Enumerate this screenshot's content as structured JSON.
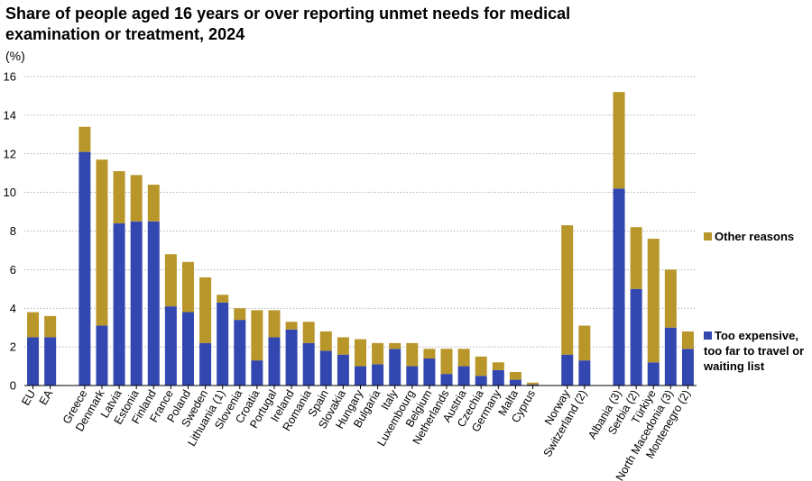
{
  "chart_data": {
    "type": "bar",
    "stacked": true,
    "title": "Share of people aged 16 years or over reporting unmet needs for medical examination or treatment, 2024",
    "ylabel": "(%)",
    "ylim": [
      0,
      16
    ],
    "yticks": [
      0,
      2,
      4,
      6,
      8,
      10,
      12,
      14,
      16
    ],
    "categories": [
      "EU",
      "EA",
      "",
      "Greece",
      "Denmark",
      "Latvia",
      "Estonia",
      "Finland",
      "France",
      "Poland",
      "Sweden",
      "Lithuania (1)",
      "Slovenia",
      "Croatia",
      "Portugal",
      "Ireland",
      "Romania",
      "Spain",
      "Slovakia",
      "Hungary",
      "Bulgaria",
      "Italy",
      "Luxembourg",
      "Belgium",
      "Netherlands",
      "Austria",
      "Czechia",
      "Germany",
      "Malta",
      "Cyprus",
      "",
      "Norway",
      "Switzerland (2)",
      "",
      "Albania (3)",
      "Serbia (2)",
      "Türkiye",
      "North Macedonia (3)",
      "Montenegro (2)"
    ],
    "series": [
      {
        "name": "Too expensive, too far to travel or waiting list",
        "color": "#3347b0",
        "values": [
          2.5,
          2.5,
          null,
          12.1,
          3.1,
          8.4,
          8.5,
          8.5,
          4.1,
          3.8,
          2.2,
          4.3,
          3.4,
          1.3,
          2.5,
          2.9,
          2.2,
          1.8,
          1.6,
          1.0,
          1.1,
          1.9,
          1.0,
          1.4,
          0.6,
          1.0,
          0.5,
          0.8,
          0.3,
          0.05,
          null,
          1.6,
          1.3,
          null,
          10.2,
          5.0,
          1.2,
          3.0,
          1.9
        ]
      },
      {
        "name": "Other reasons",
        "color": "#b8962a",
        "values": [
          1.3,
          1.1,
          null,
          1.3,
          8.6,
          2.7,
          2.4,
          1.9,
          2.7,
          2.6,
          3.4,
          0.4,
          0.6,
          2.6,
          1.4,
          0.4,
          1.1,
          1.0,
          0.9,
          1.4,
          1.1,
          0.3,
          1.2,
          0.5,
          1.3,
          0.9,
          1.0,
          0.4,
          0.4,
          0.1,
          null,
          6.7,
          1.8,
          null,
          5.0,
          3.2,
          6.4,
          3.0,
          0.9
        ]
      }
    ],
    "legend_position": "right",
    "grid": true
  },
  "legend": {
    "other_label": "Other reasons",
    "expensive_label": "Too expensive, too far to travel or waiting list"
  }
}
